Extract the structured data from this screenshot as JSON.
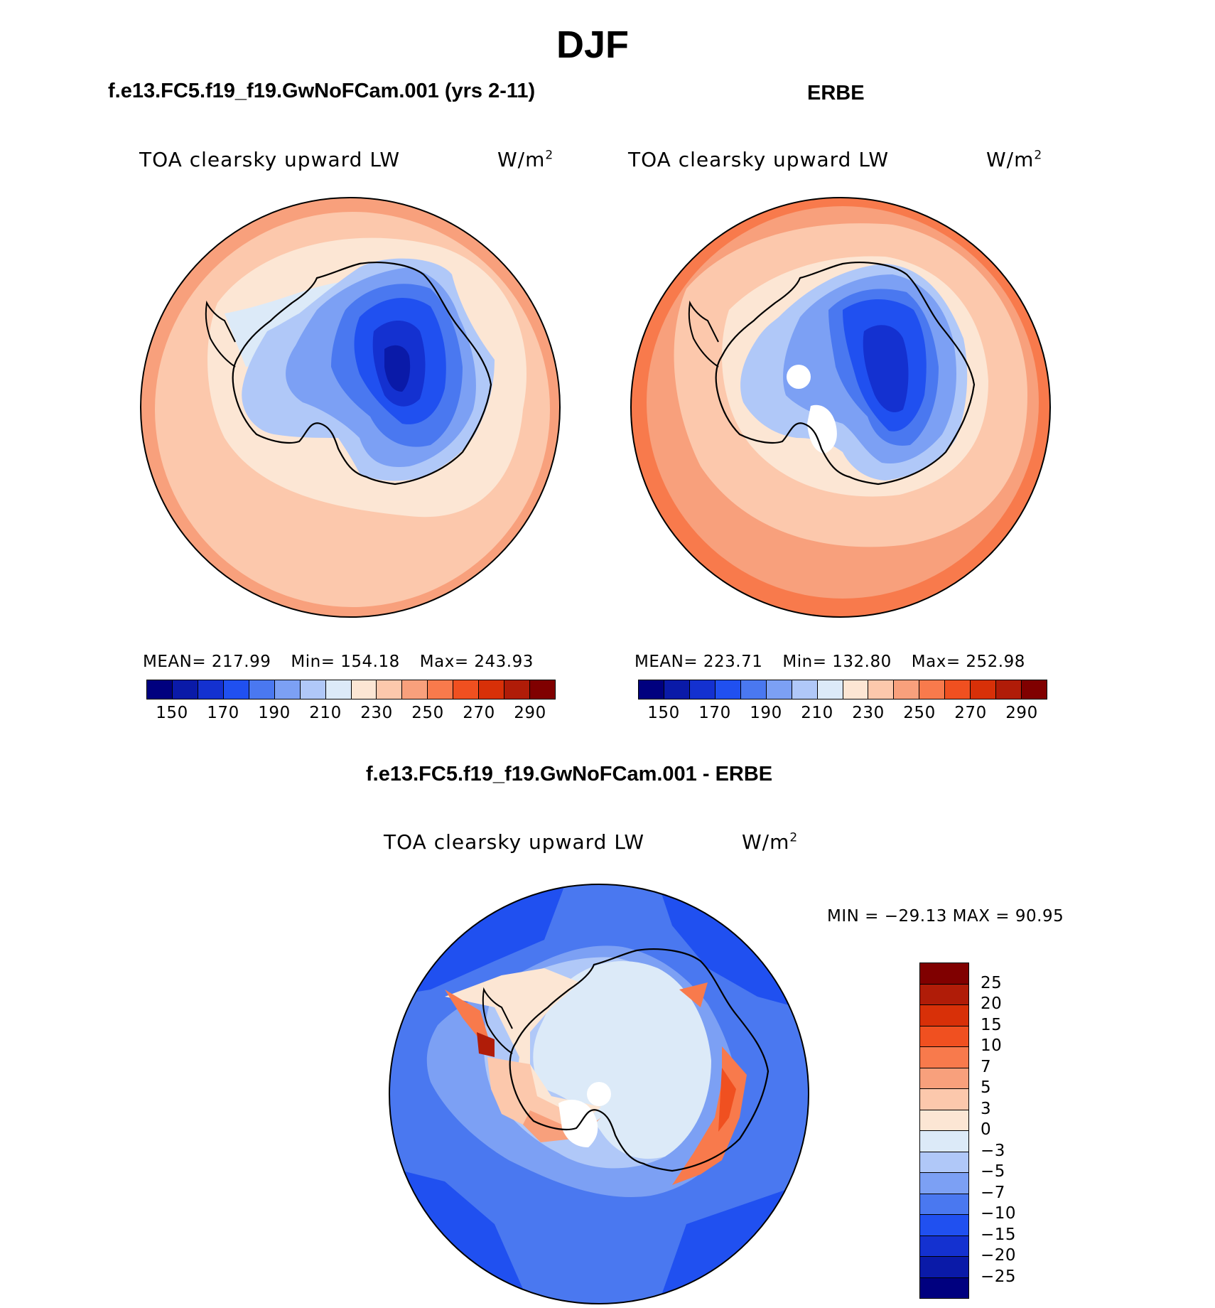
{
  "figure": {
    "season": "DJF",
    "panel_left_title": "f.e13.FC5.f19_f19.GwNoFCam.001 (yrs 2-11)",
    "panel_right_title": "ERBE",
    "panel_diff_title": "f.e13.FC5.f19_f19.GwNoFCam.001 - ERBE"
  },
  "maps": {
    "model": {
      "variable": "TOA clearsky upward LW",
      "units": "W/m",
      "units_exp": "2",
      "stats": {
        "mean": "MEAN= 217.99",
        "min": "Min= 154.18",
        "max": "Max= 243.93"
      }
    },
    "obs": {
      "variable": "TOA clearsky upward LW",
      "units": "W/m",
      "units_exp": "2",
      "stats": {
        "mean": "MEAN= 223.71",
        "min": "Min= 132.80",
        "max": "Max= 252.98"
      }
    },
    "diff": {
      "variable": "TOA clearsky upward LW",
      "units": "W/m",
      "units_exp": "2",
      "minmax": "MIN = −29.13 MAX =  90.95"
    }
  },
  "colorbar_abs": {
    "labels": [
      "150",
      "170",
      "190",
      "210",
      "230",
      "250",
      "270",
      "290"
    ],
    "colors": [
      "#00007f",
      "#0a1aa8",
      "#1431d0",
      "#2050f0",
      "#4a78f0",
      "#7ca0f4",
      "#b0c8f8",
      "#dceaf8",
      "#fce6d4",
      "#fcc8ac",
      "#f8a07c",
      "#f87a4c",
      "#f05020",
      "#d83008",
      "#b01c08",
      "#800000"
    ]
  },
  "colorbar_diff": {
    "labels": [
      "25",
      "20",
      "15",
      "10",
      "7",
      "5",
      "3",
      "0",
      "−3",
      "−5",
      "−7",
      "−10",
      "−15",
      "−20",
      "−25"
    ],
    "colors": [
      "#800000",
      "#b01c08",
      "#d83008",
      "#f05020",
      "#f87a4c",
      "#f8a07c",
      "#fcc8ac",
      "#fce6d4",
      "#dceaf8",
      "#b0c8f8",
      "#7ca0f4",
      "#4a78f0",
      "#2050f0",
      "#1431d0",
      "#0a1aa8",
      "#00007f"
    ]
  }
}
